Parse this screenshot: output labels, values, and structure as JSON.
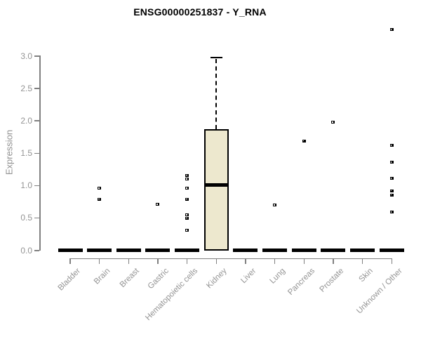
{
  "chart_data": {
    "type": "boxplot",
    "title": "ENSG00000251837 - Y_RNA",
    "ylabel": "Expression",
    "xlabel": "",
    "ylim": [
      0,
      3.4
    ],
    "yticks": [
      0.0,
      0.5,
      1.0,
      1.5,
      2.0,
      2.5,
      3.0
    ],
    "grid": false,
    "legend": false,
    "categories": [
      "Bladder",
      "Brain",
      "Breast",
      "Gastric",
      "Hematopoietic cells",
      "Kidney",
      "Liver",
      "Lung",
      "Pancreas",
      "Prostate",
      "Skin",
      "Unknown / Other"
    ],
    "boxes": [
      {
        "category": "Bladder",
        "q1": 0,
        "median": 0,
        "q3": 0,
        "whisker_low": 0,
        "whisker_high": 0,
        "outliers": []
      },
      {
        "category": "Brain",
        "q1": 0,
        "median": 0,
        "q3": 0,
        "whisker_low": 0,
        "whisker_high": 0,
        "outliers": [
          0.95,
          0.78
        ]
      },
      {
        "category": "Breast",
        "q1": 0,
        "median": 0,
        "q3": 0,
        "whisker_low": 0,
        "whisker_high": 0,
        "outliers": []
      },
      {
        "category": "Gastric",
        "q1": 0,
        "median": 0,
        "q3": 0,
        "whisker_low": 0,
        "whisker_high": 0,
        "outliers": [
          0.7
        ]
      },
      {
        "category": "Hematopoietic cells",
        "q1": 0,
        "median": 0,
        "q3": 0,
        "whisker_low": 0,
        "whisker_high": 0,
        "outliers": [
          1.15,
          1.09,
          0.95,
          0.78,
          0.54,
          0.49,
          0.3
        ]
      },
      {
        "category": "Kidney",
        "q1": 0,
        "median": 1.0,
        "q3": 1.85,
        "whisker_low": 0,
        "whisker_high": 2.97,
        "outliers": []
      },
      {
        "category": "Liver",
        "q1": 0,
        "median": 0,
        "q3": 0,
        "whisker_low": 0,
        "whisker_high": 0,
        "outliers": []
      },
      {
        "category": "Lung",
        "q1": 0,
        "median": 0,
        "q3": 0,
        "whisker_low": 0,
        "whisker_high": 0,
        "outliers": [
          0.69
        ]
      },
      {
        "category": "Pancreas",
        "q1": 0,
        "median": 0,
        "q3": 0,
        "whisker_low": 0,
        "whisker_high": 0,
        "outliers": [
          1.68
        ]
      },
      {
        "category": "Prostate",
        "q1": 0,
        "median": 0,
        "q3": 0,
        "whisker_low": 0,
        "whisker_high": 0,
        "outliers": [
          1.97
        ]
      },
      {
        "category": "Skin",
        "q1": 0,
        "median": 0,
        "q3": 0,
        "whisker_low": 0,
        "whisker_high": 0,
        "outliers": []
      },
      {
        "category": "Unknown / Other",
        "q1": 0,
        "median": 0,
        "q3": 0,
        "whisker_low": 0,
        "whisker_high": 0,
        "outliers": [
          3.4,
          1.61,
          1.35,
          1.1,
          0.91,
          0.85,
          0.58
        ]
      }
    ],
    "colors": {
      "box_fill": "#EDE8CE",
      "box_border": "#000000",
      "median": "#000000",
      "axis": "#808080",
      "tick_text": "#949494",
      "title_text": "#000000"
    }
  }
}
